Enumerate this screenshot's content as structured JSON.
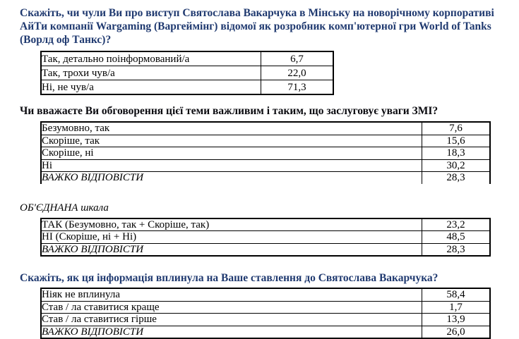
{
  "colors": {
    "heading_blue": "#203a70",
    "heading_black": "#0a0a0f",
    "table_border": "#000000",
    "background": "#ffffff"
  },
  "q1": {
    "heading": "Скажіть, чи чули Ви про виступ Святослава Вакарчука в Мінську на новорічному корпоративі\nАйТи компанії Wargaming (Варгеймінг) відомої як розробник комп'ютерної гри World of Tanks\n(Ворлд оф Танкс)?",
    "rows": [
      {
        "label": "Так, детально поінформований/а",
        "value": "6,7"
      },
      {
        "label": "Так, трохи чув/а",
        "value": "22,0"
      },
      {
        "label": "Ні, не чув/а",
        "value": "71,3"
      }
    ]
  },
  "q2": {
    "heading": "Чи вважаєте Ви обговорення цієї теми важливим і таким, що заслуговує  уваги ЗМІ?",
    "rows": [
      {
        "label": "Безумовно, так",
        "value": "7,6"
      },
      {
        "label": "Скоріше, так",
        "value": "15,6"
      },
      {
        "label": "Скоріше,  ні",
        "value": "18,3"
      },
      {
        "label": "Ні",
        "value": "30,2"
      },
      {
        "label": "ВАЖКО ВІДПОВІСТИ",
        "value": "28,3"
      }
    ]
  },
  "q3": {
    "heading": "ОБ'ЄДНАНА шкала",
    "rows": [
      {
        "label": "ТАК (Безумовно, так + Скоріше, так)",
        "value": "23,2"
      },
      {
        "label": "НІ (Скоріше, ні + Ні)",
        "value": "48,5"
      },
      {
        "label": "ВАЖКО ВІДПОВІСТИ",
        "value": "28,3"
      }
    ]
  },
  "q4": {
    "heading": "Скажіть, як ця інформація вплинула на Ваше ставлення до Святослава Вакарчука?",
    "rows": [
      {
        "label": "Ніяк не вплинула",
        "value": "58,4"
      },
      {
        "label": "Став / ла ставитися краще",
        "value": "1,7"
      },
      {
        "label": "Став / ла ставитися гірше",
        "value": "13,9"
      },
      {
        "label": "ВАЖКО ВІДПОВІСТИ",
        "value": "26,0"
      }
    ]
  }
}
